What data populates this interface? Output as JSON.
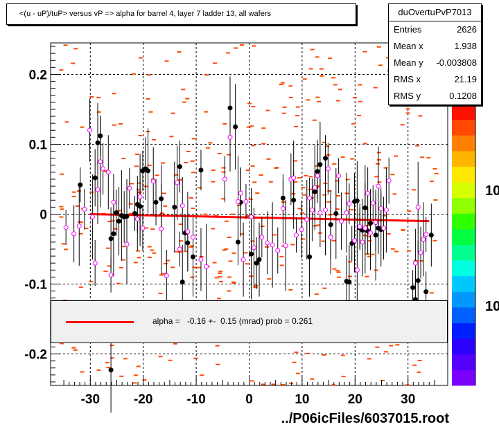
{
  "chart_data": {
    "type": "scatter",
    "title": "<(u - uP)/tuP> versus   vP => alpha for barrel 4, layer 7 ladder 13, all wafers",
    "xlim": [
      -37.5,
      37.5
    ],
    "ylim": [
      -0.245,
      0.245
    ],
    "x_ticks": [
      -30,
      -20,
      -10,
      0,
      10,
      20,
      30
    ],
    "x_tick_labels": [
      "-30",
      "-20",
      "-10",
      "0",
      "10",
      "20",
      "30"
    ],
    "y_ticks": [
      0.2,
      0.1,
      0,
      -0.1,
      -0.2
    ],
    "y_tick_labels": [
      "0.2",
      "0.1",
      "0",
      "-0.1",
      "-0.2"
    ],
    "grid": true,
    "z_axis_labels": [
      "10",
      "10"
    ],
    "stats": {
      "name": "duOvertuPvP7013",
      "rows": [
        {
          "label": "Entries",
          "value": "2626"
        },
        {
          "label": "Mean x",
          "value": "1.938"
        },
        {
          "label": "Mean y",
          "value": "-0.003808"
        },
        {
          "label": "RMS x",
          "value": "21.19"
        },
        {
          "label": "RMS y",
          "value": "0.1208"
        }
      ]
    },
    "fit": {
      "legend": "alpha =   -0.16 +-  0.15 (mrad) prob = 0.261",
      "line": [
        [
          -30,
          0.0
        ],
        [
          34,
          -0.01
        ]
      ]
    },
    "series": [
      {
        "marker": "filled-circle",
        "points": [
          [
            -31.9,
            0.042
          ],
          [
            -29.1,
            0.052
          ],
          [
            -28.6,
            0.102
          ],
          [
            -28.1,
            0.112
          ],
          [
            -26.1,
            -0.035
          ],
          [
            -25.6,
            -0.028
          ],
          [
            -25.1,
            0.002
          ],
          [
            -24.6,
            -0.01
          ],
          [
            -24.1,
            -0.002
          ],
          [
            -23.6,
            -0.004
          ],
          [
            -23.1,
            -0.003
          ],
          [
            -21.6,
            0.001
          ],
          [
            -21.1,
            0.014
          ],
          [
            -20.6,
            0.011
          ],
          [
            -20.1,
            0.062
          ],
          [
            -19.6,
            0.065
          ],
          [
            -19.1,
            0.062
          ],
          [
            -17.6,
            0.017
          ],
          [
            -16.6,
            0.022
          ],
          [
            -14.1,
            0.01
          ],
          [
            -13.1,
            0.068
          ],
          [
            -12.6,
            -0.097
          ],
          [
            -12.1,
            -0.027
          ],
          [
            -11.6,
            -0.041
          ],
          [
            -10.6,
            -0.061
          ],
          [
            -9.1,
            0.063
          ],
          [
            -3.6,
            0.152
          ],
          [
            -2.6,
            0.125
          ],
          [
            -2.1,
            -0.04
          ],
          [
            -1.6,
            0.017
          ],
          [
            0.4,
            -0.057
          ],
          [
            1.4,
            -0.07
          ],
          [
            1.9,
            -0.065
          ],
          [
            6.4,
            0.023
          ],
          [
            8.4,
            0.02
          ],
          [
            11.4,
            -0.061
          ],
          [
            12.4,
            0.032
          ],
          [
            12.9,
            0.061
          ],
          [
            13.4,
            0.071
          ],
          [
            14.4,
            0.08
          ],
          [
            15.4,
            -0.015
          ],
          [
            16.4,
            0.001
          ],
          [
            18.4,
            -0.096
          ],
          [
            18.9,
            -0.097
          ],
          [
            19.4,
            -0.042
          ],
          [
            19.9,
            0.018
          ],
          [
            20.4,
            0.019
          ],
          [
            20.9,
            -0.02
          ],
          [
            21.4,
            -0.023
          ],
          [
            21.9,
            0.009
          ],
          [
            22.4,
            -0.024
          ],
          [
            22.9,
            -0.013
          ],
          [
            23.9,
            -0.03
          ],
          [
            24.4,
            -0.02
          ],
          [
            24.9,
            -0.022
          ],
          [
            30.9,
            -0.105
          ],
          [
            31.4,
            -0.122
          ],
          [
            31.9,
            -0.095
          ],
          [
            33.4,
            -0.111
          ],
          [
            34.4,
            -0.03
          ],
          [
            -26.1,
            -0.223
          ]
        ]
      },
      {
        "marker": "open-circle",
        "points": [
          [
            -34.6,
            -0.019
          ],
          [
            -33.1,
            -0.028
          ],
          [
            -32.1,
            -0.017
          ],
          [
            -31.1,
            0.007
          ],
          [
            -30.1,
            0.12
          ],
          [
            -29.6,
            -0.004
          ],
          [
            -29.1,
            -0.07
          ],
          [
            -28.6,
            0.035
          ],
          [
            -28.1,
            0.075
          ],
          [
            -27.6,
            0.065
          ],
          [
            -26.6,
            0.06
          ],
          [
            -26.1,
            -0.087
          ],
          [
            -25.6,
            0.017
          ],
          [
            -23.1,
            -0.043
          ],
          [
            -22.6,
            0.037
          ],
          [
            -21.1,
            -0.007
          ],
          [
            -20.6,
            0.025
          ],
          [
            -20.1,
            -0.02
          ],
          [
            -18.1,
            0.047
          ],
          [
            -16.6,
            -0.021
          ],
          [
            -15.6,
            -0.088
          ],
          [
            -13.6,
            0.045
          ],
          [
            -13.1,
            -0.05
          ],
          [
            -12.6,
            0.012
          ],
          [
            -11.6,
            -0.025
          ],
          [
            -10.6,
            -0.033
          ],
          [
            -9.1,
            -0.065
          ],
          [
            -8.1,
            -0.075
          ],
          [
            -4.6,
            0.05
          ],
          [
            -3.6,
            0.11
          ],
          [
            -2.1,
            0.018
          ],
          [
            -1.6,
            0.03
          ],
          [
            -1.1,
            -0.065
          ],
          [
            -0.6,
            0.018
          ],
          [
            0.4,
            -0.004
          ],
          [
            0.9,
            -0.048
          ],
          [
            2.4,
            -0.033
          ],
          [
            3.4,
            -0.041
          ],
          [
            4.4,
            -0.044
          ],
          [
            5.4,
            -0.052
          ],
          [
            6.4,
            0.008
          ],
          [
            6.9,
            -0.045
          ],
          [
            7.9,
            0.05
          ],
          [
            8.4,
            0.052
          ],
          [
            8.9,
            -0.03
          ],
          [
            9.9,
            -0.022
          ],
          [
            10.9,
            -0.008
          ],
          [
            11.4,
            0.023
          ],
          [
            11.9,
            0.006
          ],
          [
            12.4,
            0.038
          ],
          [
            12.9,
            0.055
          ],
          [
            13.4,
            0.002
          ],
          [
            14.4,
            0.006
          ],
          [
            14.9,
            0.065
          ],
          [
            15.4,
            -0.033
          ],
          [
            16.9,
            0.055
          ],
          [
            17.4,
            -0.01
          ],
          [
            18.4,
            0.002
          ],
          [
            18.9,
            0.015
          ],
          [
            19.9,
            -0.038
          ],
          [
            20.4,
            -0.08
          ],
          [
            20.9,
            -0.018
          ],
          [
            21.4,
            -0.04
          ],
          [
            21.9,
            -0.02
          ],
          [
            22.4,
            0.03
          ],
          [
            22.9,
            -0.027
          ],
          [
            23.4,
            0.016
          ],
          [
            23.9,
            -0.012
          ],
          [
            24.4,
            0.04
          ],
          [
            24.9,
            0.008
          ],
          [
            25.4,
            -0.02
          ],
          [
            25.9,
            0.006
          ],
          [
            26.4,
            0.048
          ],
          [
            31.4,
            -0.07
          ],
          [
            31.9,
            0.01
          ],
          [
            32.4,
            -0.055
          ],
          [
            32.9,
            -0.036
          ],
          [
            33.4,
            -0.029
          ]
        ]
      }
    ]
  }
}
